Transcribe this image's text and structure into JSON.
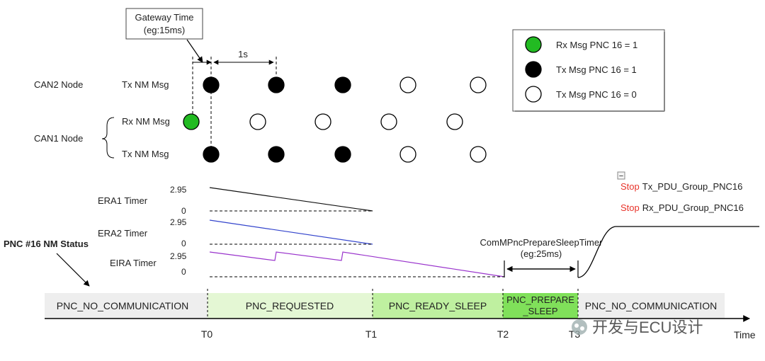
{
  "callout": {
    "line1": "Gateway Time",
    "line2": "(eg:15ms)"
  },
  "interval_label": "1s",
  "legend": {
    "rx_pnc1": "Rx Msg PNC 16 = 1",
    "tx_pnc1": "Tx Msg PNC 16 = 1",
    "tx_pnc0": "Tx Msg PNC 16 = 0"
  },
  "nodes": {
    "can2": "CAN2  Node",
    "can1": "CAN1  Node",
    "tx_nm": "Tx NM Msg",
    "rx_nm": "Rx NM Msg"
  },
  "timers": {
    "era1": "ERA1 Timer",
    "era2": "ERA2 Timer",
    "eira": "EIRA Timer",
    "max": "2.95",
    "zero": "0"
  },
  "pnc_status_title": "PNC #16 NM Status",
  "prepare_sleep_timer": {
    "line1": "ComMPncPrepareSleepTimer",
    "line2": "(eg:25ms)"
  },
  "stop_actions": {
    "keyword": "Stop",
    "tx_group": "Tx_PDU_Group_PNC16",
    "rx_group": "Rx_PDU_Group_PNC16"
  },
  "collapse_glyph": "−",
  "states": {
    "no_comm_1": "PNC_NO_COMMUNICATION",
    "requested": "PNC_REQUESTED",
    "ready_sleep": "PNC_READY_SLEEP",
    "prepare_line1": "PNC_PREPARE",
    "prepare_line2": "_SLEEP",
    "no_comm_2": "PNC_NO_COMMUNICATION"
  },
  "ticks": {
    "t0": "T0",
    "t1": "T1",
    "t2": "T2",
    "t3": "T3"
  },
  "axis_label": "Time",
  "watermark": "开发与ECU设计",
  "colors": {
    "green": "#22bb22",
    "black": "#000000",
    "era2_line": "#3344cc",
    "eira_line": "#9933cc",
    "stop_red": "#e8332a",
    "gray_band": "#eeeeee",
    "requested_band": "#e4f7d4",
    "ready_band": "#bff0a0",
    "prepare_band": "#80e05a"
  }
}
